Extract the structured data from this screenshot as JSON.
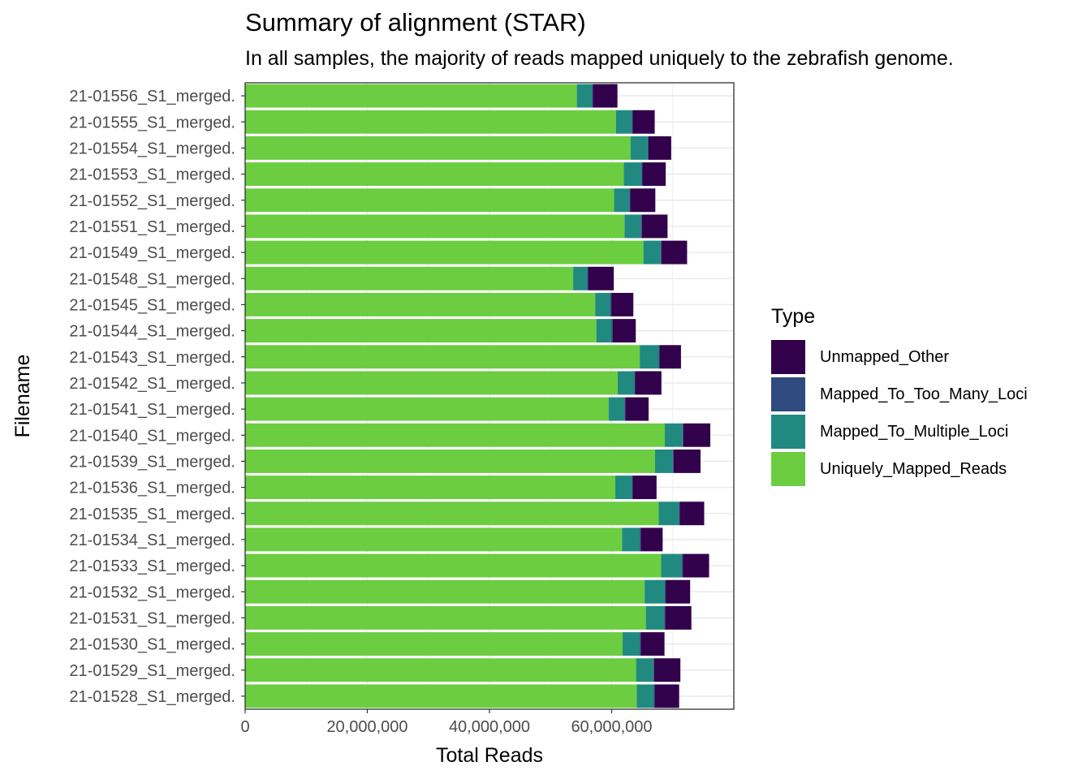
{
  "title": "Summary of alignment (STAR)",
  "subtitle": "In all samples, the majority of reads mapped uniquely to the zebrafish genome.",
  "colors": {
    "Unmapped_Other": "#31014b",
    "Mapped_To_Too_Many_Loci": "#2f4a7e",
    "Mapped_To_Multiple_Loci": "#208a80",
    "Uniquely_Mapped_Reads": "#6ccd41",
    "grid": "#ebebeb",
    "panel_border": "#333333"
  },
  "legend": {
    "title": "Type",
    "entries": [
      "Unmapped_Other",
      "Mapped_To_Too_Many_Loci",
      "Mapped_To_Multiple_Loci",
      "Uniquely_Mapped_Reads"
    ]
  },
  "chart_data": {
    "type": "bar",
    "orientation": "horizontal",
    "stacked": true,
    "xlabel": "Total Reads",
    "ylabel": "Filename",
    "xlim": [
      0,
      80000000
    ],
    "xticks": [
      0,
      20000000,
      40000000,
      60000000
    ],
    "xtick_labels": [
      "0",
      "20,000,000",
      "40,000,000",
      "60,000,000"
    ],
    "legend_position": "right",
    "grid": true,
    "categories": [
      "21-01556_S1_merged.",
      "21-01555_S1_merged.",
      "21-01554_S1_merged.",
      "21-01553_S1_merged.",
      "21-01552_S1_merged.",
      "21-01551_S1_merged.",
      "21-01549_S1_merged.",
      "21-01548_S1_merged.",
      "21-01545_S1_merged.",
      "21-01544_S1_merged.",
      "21-01543_S1_merged.",
      "21-01542_S1_merged.",
      "21-01541_S1_merged.",
      "21-01540_S1_merged.",
      "21-01539_S1_merged.",
      "21-01536_S1_merged.",
      "21-01535_S1_merged.",
      "21-01534_S1_merged.",
      "21-01533_S1_merged.",
      "21-01532_S1_merged.",
      "21-01531_S1_merged.",
      "21-01530_S1_merged.",
      "21-01529_S1_merged.",
      "21-01528_S1_merged."
    ],
    "series": [
      {
        "name": "Uniquely_Mapped_Reads",
        "values": [
          54300000,
          60700000,
          63100000,
          62000000,
          60400000,
          62100000,
          65200000,
          53700000,
          57300000,
          57500000,
          64600000,
          61000000,
          59500000,
          68700000,
          67100000,
          60600000,
          67700000,
          61700000,
          68100000,
          65400000,
          65600000,
          61800000,
          64000000,
          64100000
        ]
      },
      {
        "name": "Mapped_To_Multiple_Loci",
        "values": [
          2500000,
          2600000,
          2800000,
          2900000,
          2500000,
          2700000,
          2800000,
          2300000,
          2500000,
          2500000,
          3100000,
          2700000,
          2600000,
          2900000,
          2900000,
          2700000,
          3300000,
          2900000,
          3400000,
          3300000,
          3000000,
          2800000,
          2800000,
          2800000
        ]
      },
      {
        "name": "Mapped_To_Too_Many_Loci",
        "values": [
          150000,
          150000,
          150000,
          150000,
          150000,
          150000,
          150000,
          150000,
          150000,
          150000,
          150000,
          150000,
          150000,
          150000,
          150000,
          150000,
          150000,
          150000,
          150000,
          150000,
          150000,
          150000,
          150000,
          150000
        ]
      },
      {
        "name": "Unmapped_Other",
        "values": [
          4000000,
          3600000,
          3700000,
          3800000,
          4100000,
          4200000,
          4200000,
          4200000,
          3600000,
          3800000,
          3500000,
          4300000,
          3800000,
          4400000,
          4400000,
          3900000,
          4000000,
          3600000,
          4300000,
          4000000,
          4300000,
          3900000,
          4300000,
          4000000
        ]
      }
    ]
  }
}
